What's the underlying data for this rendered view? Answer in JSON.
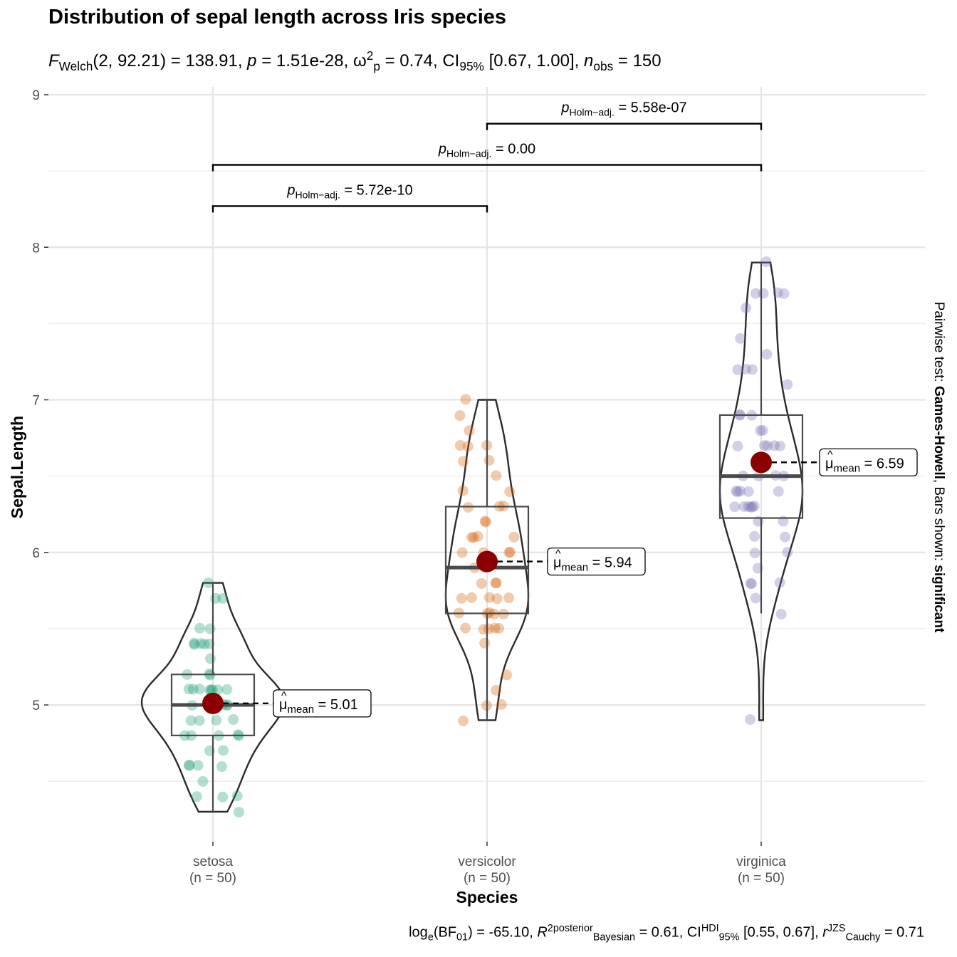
{
  "title": "Distribution of sepal length across Iris species",
  "subtitle": {
    "f_symbol": "F",
    "f_sub": "Welch",
    "f_args": "(2, 92.21) = 138.91, ",
    "p_symbol": "p",
    "p_value": " = 1.51e-28, ",
    "omega_symbol": "ω",
    "omega_sup": "2",
    "omega_sub": "p",
    "omega_value": " = 0.74, CI",
    "ci_sub": "95%",
    "ci_value": " [0.67, 1.00], ",
    "n_symbol": "n",
    "n_sub": "obs",
    "n_value": " = 150"
  },
  "caption": {
    "log_text": "log",
    "log_sub": "e",
    "bf_text": "(BF",
    "bf_sub": "01",
    "bf_value": ") = -65.10, ",
    "r2_symbol": "R",
    "r2_sup": "2",
    "r2_sup2": "posterior",
    "r2_sub": "Bayesian",
    "r2_value": " = 0.61, CI",
    "ci_sup": "HDI",
    "ci_sub": "95%",
    "ci_value": " [0.55, 0.67], ",
    "r_symbol": "r",
    "r_sup": "JZS",
    "r_sub": "Cauchy",
    "r_value": " = 0.71"
  },
  "side_caption": {
    "prefix": "Pairwise test: ",
    "test": "Games-Howell",
    "middle": ", Bars shown: ",
    "shown": "significant"
  },
  "chart_data": {
    "type": "violin-box-scatter",
    "xlabel": "Species",
    "ylabel": "Sepal.Length",
    "ylim": [
      4.3,
      9.1
    ],
    "y_ticks": [
      5,
      6,
      7,
      8,
      9
    ],
    "grid": true,
    "categories": [
      "setosa",
      "versicolor",
      "virginica"
    ],
    "category_n": [
      "(n = 50)",
      "(n = 50)",
      "(n = 50)"
    ],
    "colors": {
      "setosa": "#1B9E77",
      "versicolor": "#D95F02",
      "virginica": "#7570B3",
      "mean_point": "#8B0000"
    },
    "groups": [
      {
        "name": "setosa",
        "mean": 5.01,
        "mean_label_prefix": "μ",
        "mean_label_sub": "mean",
        "mean_label_value": " = 5.01",
        "box": {
          "min": 4.3,
          "q1": 4.8,
          "median": 5.0,
          "q3": 5.2,
          "max": 5.8
        },
        "points": [
          5.1,
          4.9,
          4.7,
          4.6,
          5.0,
          5.4,
          4.6,
          5.0,
          4.4,
          4.9,
          5.4,
          4.8,
          4.8,
          4.3,
          5.8,
          5.7,
          5.4,
          5.1,
          5.7,
          5.1,
          5.4,
          5.1,
          4.6,
          5.1,
          4.8,
          5.0,
          5.0,
          5.2,
          5.2,
          4.7,
          4.8,
          5.4,
          5.2,
          5.5,
          4.9,
          5.0,
          5.5,
          4.9,
          4.4,
          5.1,
          5.0,
          4.5,
          4.4,
          5.0,
          5.1,
          4.8,
          5.1,
          4.6,
          5.3,
          5.0
        ]
      },
      {
        "name": "versicolor",
        "mean": 5.94,
        "mean_label_prefix": "μ",
        "mean_label_sub": "mean",
        "mean_label_value": " = 5.94",
        "box": {
          "min": 4.9,
          "q1": 5.6,
          "median": 5.9,
          "q3": 6.3,
          "max": 7.0
        },
        "points": [
          7.0,
          6.4,
          6.9,
          5.5,
          6.5,
          5.7,
          6.3,
          4.9,
          6.6,
          5.2,
          5.0,
          5.9,
          6.0,
          6.1,
          5.6,
          6.7,
          5.6,
          5.8,
          6.2,
          5.6,
          5.9,
          6.1,
          6.3,
          6.1,
          6.4,
          6.6,
          6.8,
          6.7,
          6.0,
          5.7,
          5.5,
          5.5,
          5.8,
          6.0,
          5.4,
          6.0,
          6.7,
          6.3,
          5.6,
          5.5,
          5.5,
          6.1,
          5.8,
          5.0,
          5.6,
          5.7,
          5.7,
          6.2,
          5.1,
          5.7
        ]
      },
      {
        "name": "virginica",
        "mean": 6.59,
        "mean_label_prefix": "μ",
        "mean_label_sub": "mean",
        "mean_label_value": " = 6.59",
        "box": {
          "min": 5.6,
          "q1": 6.225,
          "median": 6.5,
          "q3": 6.9,
          "max": 7.9
        },
        "points": [
          6.3,
          5.8,
          7.1,
          6.3,
          6.5,
          7.6,
          4.9,
          7.3,
          6.7,
          7.2,
          6.5,
          6.4,
          6.8,
          5.7,
          5.8,
          6.4,
          6.5,
          7.7,
          7.7,
          6.0,
          6.9,
          5.6,
          7.7,
          6.3,
          6.7,
          7.2,
          6.2,
          6.1,
          6.4,
          7.2,
          7.4,
          7.9,
          6.4,
          6.3,
          6.1,
          7.7,
          6.3,
          6.4,
          6.0,
          6.9,
          6.7,
          6.9,
          5.8,
          6.8,
          6.7,
          6.7,
          6.3,
          6.5,
          6.2,
          5.9
        ]
      }
    ],
    "comparisons": [
      {
        "from": "setosa",
        "to": "versicolor",
        "label_symbol": "p",
        "label_sub": "Holm−adj.",
        "label_value": " = 5.72e-10",
        "y": 8.27
      },
      {
        "from": "setosa",
        "to": "virginica",
        "label_symbol": "p",
        "label_sub": "Holm−adj.",
        "label_value": " = 0.00",
        "y": 8.54
      },
      {
        "from": "versicolor",
        "to": "virginica",
        "label_symbol": "p",
        "label_sub": "Holm−adj.",
        "label_value": " = 5.58e-07",
        "y": 8.81
      }
    ]
  }
}
